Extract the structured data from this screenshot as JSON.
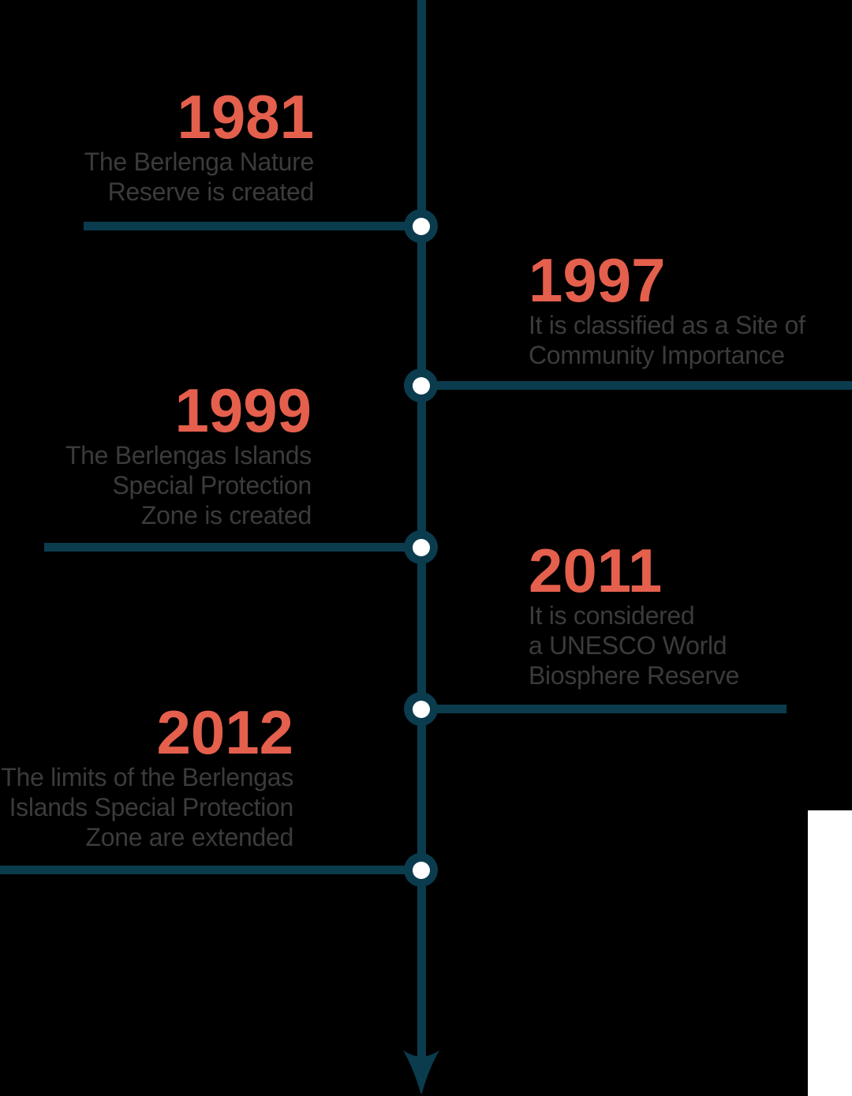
{
  "colors": {
    "background": "#000000",
    "timeline": "#0a3c4e",
    "accent_year": "#e55f4d",
    "description_text": "#3b3b3b",
    "node_center": "#ffffff",
    "corner_patch": "#ffffff"
  },
  "timeline": {
    "direction": "down",
    "events": [
      {
        "year": "1981",
        "side": "left",
        "description_lines": [
          "The Berlenga Nature",
          "Reserve is created"
        ]
      },
      {
        "year": "1997",
        "side": "right",
        "description_lines": [
          "It is classified as a Site of",
          "Community Importance"
        ]
      },
      {
        "year": "1999",
        "side": "left",
        "description_lines": [
          "The Berlengas Islands",
          "Special Protection",
          "Zone is created"
        ]
      },
      {
        "year": "2011",
        "side": "right",
        "description_lines": [
          "It is considered",
          "a UNESCO World",
          "Biosphere Reserve"
        ]
      },
      {
        "year": "2012",
        "side": "left",
        "description_lines": [
          "The limits of the Berlengas",
          "Islands Special Protection",
          "Zone are extended"
        ]
      }
    ]
  }
}
